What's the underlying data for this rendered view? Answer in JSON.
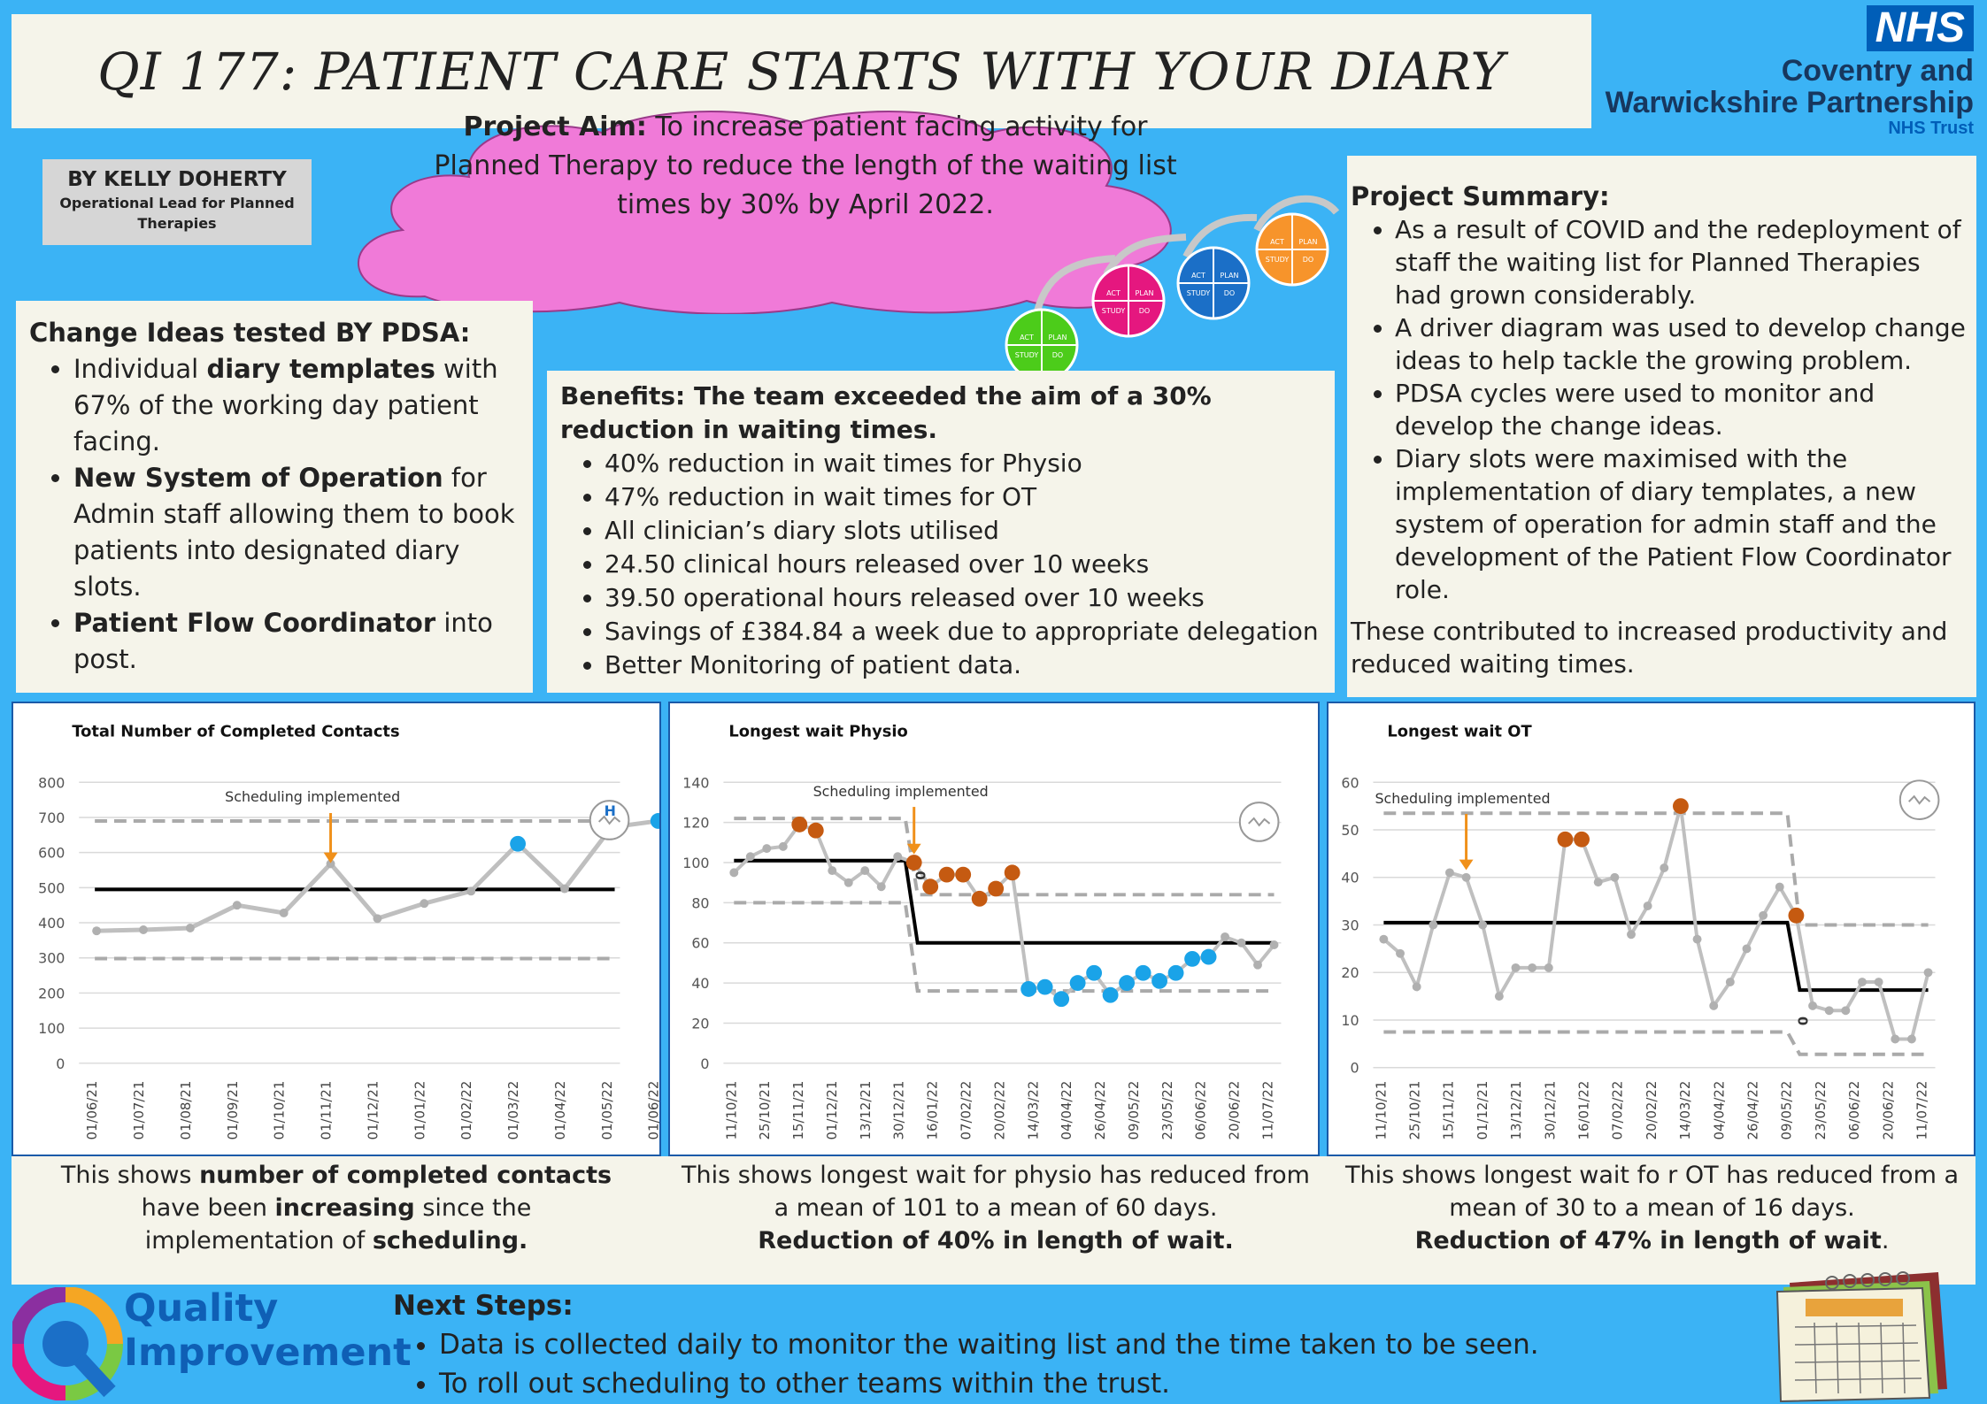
{
  "title": "QI 177: PATIENT CARE STARTS WITH YOUR DIARY",
  "logo": {
    "nhs": "NHS",
    "trust_line1": "Coventry and",
    "trust_line2": "Warwickshire Partnership",
    "trust_sub": "NHS Trust"
  },
  "author": {
    "name": "BY KELLY DOHERTY",
    "role_line1": "Operational Lead for Planned",
    "role_line2": "Therapies"
  },
  "aim": {
    "label": "Project Aim:",
    "text": " To increase patient facing activity for Planned Therapy to reduce the length of the waiting list times by 30% by April 2022."
  },
  "pdsa_labels": {
    "act": "ACT",
    "plan": "PLAN",
    "study": "STUDY",
    "do": "DO"
  },
  "summary": {
    "heading": "Project Summary:",
    "items": [
      "As a result of COVID and the redeployment of staff the waiting list for Planned Therapies had grown considerably.",
      " A driver diagram was used to develop change ideas to help tackle the growing problem.",
      " PDSA cycles were used to monitor and develop the change ideas.",
      "Diary slots were maximised with the implementation of diary templates, a new system of operation for admin staff and the development of the Patient Flow Coordinator role."
    ],
    "closing": "These contributed to increased productivity and reduced waiting times."
  },
  "change_ideas": {
    "heading": "Change Ideas tested BY PDSA:",
    "items": [
      {
        "pre": "Individual ",
        "bold": "diary templates",
        "post": " with 67% of the working day patient facing."
      },
      {
        "pre": "",
        "bold": "New System of Operation",
        "post": " for Admin staff allowing them to book patients into designated diary slots."
      },
      {
        "pre": "",
        "bold": "Patient Flow Coordinator",
        "post": " into post."
      }
    ]
  },
  "benefits": {
    "heading": "Benefits: The team exceeded the aim of a 30% reduction in waiting times.",
    "items": [
      "40% reduction in wait times for Physio",
      "47% reduction in wait times for OT",
      "All clinician’s diary slots utilised",
      "24.50 clinical hours released over 10 weeks",
      "39.50 operational hours released over 10 weeks",
      "Savings of £384.84 a week due to appropriate delegation",
      "Better Monitoring of patient data."
    ]
  },
  "chart_data": [
    {
      "type": "line",
      "title": "Total Number of  Completed Contacts",
      "annotation": "Scheduling implemented",
      "icon_text": "H",
      "categories": [
        "01/06/21",
        "01/07/21",
        "01/08/21",
        "01/09/21",
        "01/10/21",
        "01/11/21",
        "01/12/21",
        "01/01/22",
        "01/02/22",
        "01/03/22",
        "01/04/22",
        "01/05/22",
        "01/06/22"
      ],
      "values": [
        377,
        380,
        385,
        450,
        428,
        568,
        412,
        455,
        490,
        625,
        497,
        672,
        690
      ],
      "highlight": [
        false,
        false,
        false,
        false,
        false,
        false,
        false,
        false,
        false,
        true,
        false,
        true,
        true
      ],
      "mean": 495,
      "ucl": 690,
      "lcl": 298,
      "ylim": [
        0,
        800
      ],
      "yticks": [
        0,
        100,
        200,
        300,
        400,
        500,
        600,
        700,
        800
      ],
      "marker_index": 5
    },
    {
      "type": "line",
      "title": "Longest wait Physio",
      "annotation": "Scheduling implemented",
      "x_labels": [
        "11/10/21",
        "25/10/21",
        "15/11/21",
        "01/12/21",
        "13/12/21",
        "30/12/21",
        "16/01/22",
        "07/02/22",
        "20/02/22",
        "14/03/22",
        "04/04/22",
        "26/04/22",
        "09/05/22",
        "23/05/22",
        "06/06/22",
        "20/06/22",
        "11/07/22"
      ],
      "values": [
        95,
        103,
        107,
        108,
        119,
        116,
        96,
        90,
        96,
        88,
        103,
        100,
        88,
        94,
        94,
        82,
        87,
        95,
        37,
        38,
        32,
        40,
        45,
        34,
        40,
        45,
        41,
        45,
        52,
        53,
        63,
        60,
        49,
        59
      ],
      "colors": [
        "g",
        "g",
        "g",
        "g",
        "o",
        "o",
        "g",
        "g",
        "g",
        "g",
        "g",
        "o",
        "o",
        "o",
        "o",
        "o",
        "o",
        "o",
        "b",
        "b",
        "b",
        "b",
        "b",
        "b",
        "b",
        "b",
        "b",
        "b",
        "b",
        "b",
        "g",
        "g",
        "g",
        "g"
      ],
      "phase_change_index": 11,
      "mean_before": 101,
      "ucl_before": 122,
      "lcl_before": 80,
      "mean_after": 60,
      "ucl_after": 84,
      "lcl_after": 36,
      "ylim": [
        0,
        140
      ],
      "yticks": [
        0,
        20,
        40,
        60,
        80,
        100,
        120,
        140
      ],
      "shift_label": "0"
    },
    {
      "type": "line",
      "title": "Longest wait OT",
      "annotation": "Scheduling implemented",
      "x_labels": [
        "11/10/21",
        "25/10/21",
        "15/11/21",
        "01/12/21",
        "13/12/21",
        "30/12/21",
        "16/01/22",
        "07/02/22",
        "20/02/22",
        "14/03/22",
        "04/04/22",
        "26/04/22",
        "09/05/22",
        "23/05/22",
        "06/06/22",
        "20/06/22",
        "11/07/22"
      ],
      "values": [
        27,
        24,
        17,
        30,
        41,
        40,
        30,
        15,
        21,
        21,
        21,
        48,
        48,
        39,
        40,
        28,
        34,
        42,
        55,
        27,
        13,
        18,
        25,
        32,
        38,
        32,
        13,
        12,
        12,
        18,
        18,
        6,
        6,
        20
      ],
      "colors": [
        "g",
        "g",
        "g",
        "g",
        "g",
        "g",
        "g",
        "g",
        "g",
        "g",
        "g",
        "o",
        "o",
        "g",
        "g",
        "g",
        "g",
        "g",
        "o",
        "g",
        "g",
        "g",
        "g",
        "g",
        "g",
        "o",
        "g",
        "g",
        "g",
        "g",
        "g",
        "g",
        "g",
        "g"
      ],
      "phase_change_index": 25,
      "mean_before": 30.5,
      "ucl_before": 53.5,
      "lcl_before": 7.5,
      "mean_after": 16.3,
      "ucl_after": 30,
      "lcl_after": 2.8,
      "ylim": [
        0,
        60
      ],
      "yticks": [
        0,
        10,
        20,
        30,
        40,
        50,
        60
      ],
      "shift_label": "0"
    }
  ],
  "captions": {
    "c1": {
      "p1": "This shows ",
      "b1": "number of completed contacts",
      "p2": " have been ",
      "b2": "increasing",
      "p3": " since the implementation of ",
      "b3": "scheduling."
    },
    "c2": {
      "text": "This shows longest wait for physio has reduced from a mean of 101 to a mean of 60 days.",
      "bold": "Reduction of 40% in length of wait."
    },
    "c3": {
      "text": "This shows longest wait fo r OT has reduced from a mean of 30 to a mean of 16 days.",
      "bold": "Reduction of 47% in length of wait",
      "tail": "."
    }
  },
  "qi": {
    "line1": "Quality",
    "line2": "Improvement"
  },
  "next_steps": {
    "heading": "Next Steps:",
    "items": [
      "Data is collected daily to monitor the waiting list and the time taken to be seen.",
      "To roll out scheduling to other teams within the trust."
    ]
  },
  "colors": {
    "background": "#3bb3f5",
    "panel": "#f5f4ea",
    "cloud": "#f07ad8",
    "orange": "#c55a11",
    "blue_point": "#1aa3e8",
    "grey_line": "#bfbfbf",
    "nhs_blue": "#005eb8"
  }
}
